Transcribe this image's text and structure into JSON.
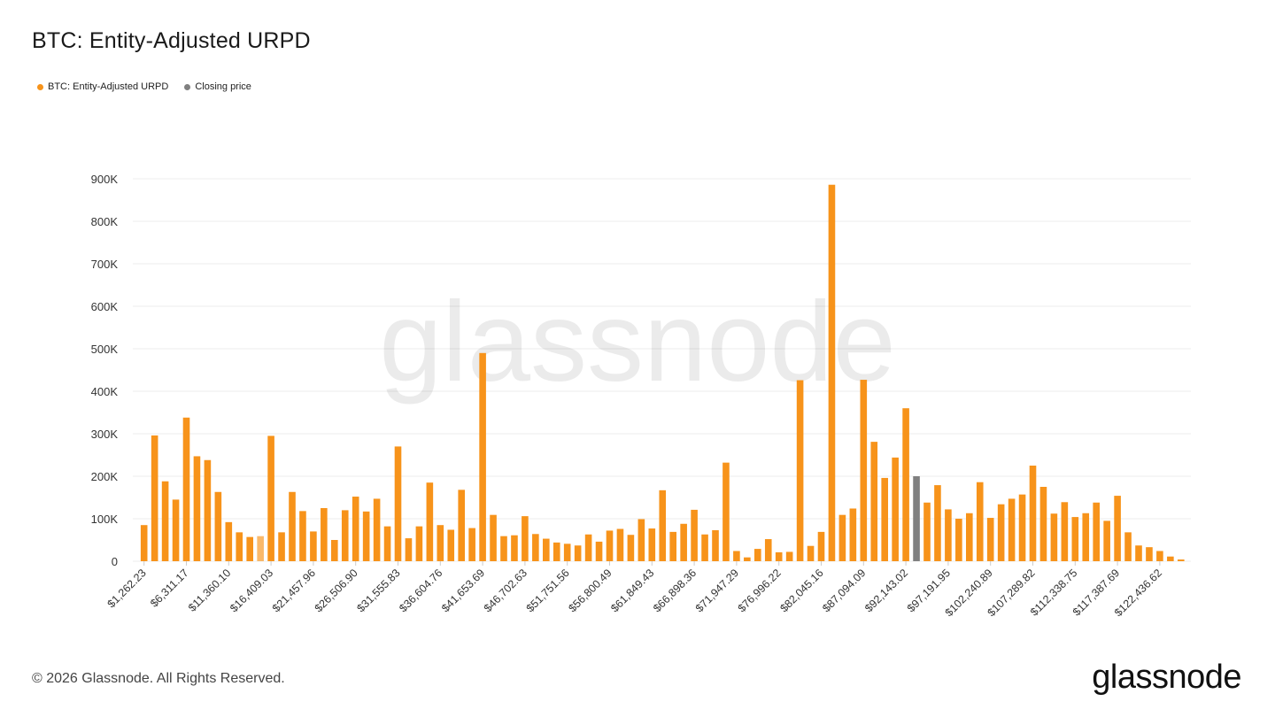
{
  "title": "BTC: Entity-Adjusted URPD",
  "legend": [
    {
      "label": "BTC: Entity-Adjusted URPD",
      "color": "#f7931a"
    },
    {
      "label": "Closing price",
      "color": "#808080"
    }
  ],
  "watermark": "glassnode",
  "footer": {
    "copyright": "© 2026 Glassnode. All Rights Reserved.",
    "logo": "glassnode"
  },
  "chart_data": {
    "type": "bar",
    "title": "BTC: Entity-Adjusted URPD",
    "xlabel": "",
    "ylabel": "",
    "ylim": [
      0,
      900000
    ],
    "y_ticks": [
      0,
      100000,
      200000,
      300000,
      400000,
      500000,
      600000,
      700000,
      800000,
      900000
    ],
    "y_tick_labels": [
      "0",
      "100K",
      "200K",
      "300K",
      "400K",
      "500K",
      "600K",
      "700K",
      "800K",
      "900K"
    ],
    "x_tick_labels": [
      "$1,262.23",
      "$6,311.17",
      "$11,360.10",
      "$16,409.03",
      "$21,457.96",
      "$26,506.90",
      "$31,555.83",
      "$36,604.76",
      "$41,653.69",
      "$46,702.63",
      "$51,751.56",
      "$56,800.49",
      "$61,849.43",
      "$66,898.36",
      "$71,947.29",
      "$76,996.22",
      "$82,045.16",
      "$87,094.09",
      "$92,143.02",
      "$97,191.95",
      "$102,240.89",
      "$107,289.82",
      "$112,338.75",
      "$117,387.69",
      "$122,436.62"
    ],
    "x_tick_every_n_bars": 4,
    "grid": true,
    "legend_position": "top-left",
    "closing_price_bar_index": 73,
    "highlighted_bar_index": 11,
    "series": [
      {
        "name": "BTC: Entity-Adjusted URPD",
        "color": "#f7931a",
        "values": [
          85000,
          296000,
          188000,
          145000,
          338000,
          247000,
          238000,
          163000,
          92000,
          68000,
          57000,
          59000,
          295000,
          68000,
          163000,
          118000,
          70000,
          125000,
          50000,
          120000,
          152000,
          117000,
          147000,
          82000,
          270000,
          54000,
          82000,
          185000,
          85000,
          74000,
          168000,
          78000,
          490000,
          109000,
          59000,
          61000,
          106000,
          64000,
          53000,
          44000,
          41000,
          37000,
          63000,
          46000,
          72000,
          76000,
          62000,
          99000,
          77000,
          167000,
          69000,
          88000,
          121000,
          63000,
          73000,
          232000,
          24000,
          9000,
          29000,
          52000,
          21000,
          22000,
          426000,
          36000,
          69000,
          886000,
          109000,
          124000,
          427000,
          281000,
          196000,
          244000,
          360000,
          200000,
          138000,
          179000,
          122000,
          100000,
          113000,
          186000,
          102000,
          134000,
          147000,
          157000,
          225000,
          175000,
          112000,
          139000,
          104000,
          113000,
          138000,
          95000,
          154000,
          68000,
          37000,
          33000,
          24000,
          11000,
          4000
        ]
      }
    ],
    "closing_price_color": "#808080"
  }
}
